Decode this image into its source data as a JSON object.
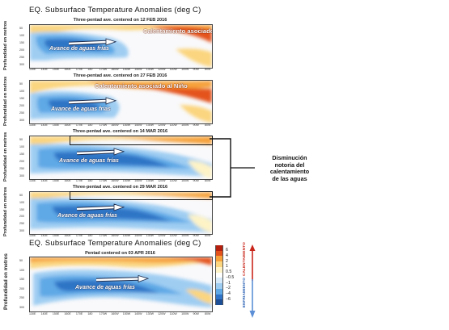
{
  "header_title": "EQ. Subsurface Temperature Anomalies (deg C)",
  "panels": [
    {
      "subtitle": "Three-pentad ave. centered on 12 FEB 2016",
      "warm_label": "Calentamiento asociado al Niño",
      "cold_label": "Avance de aguas frías",
      "ylabel": "Profundidad en metros"
    },
    {
      "subtitle": "Three-pentad ave. centered on 27 FEB 2016",
      "warm_label": "Calentamiento asociado al Niño",
      "cold_label": "Avance de aguas frías",
      "ylabel": "Profundidad en metros"
    },
    {
      "subtitle": "Three-pentad ave. centered on 14 MAR 2016",
      "warm_label": "",
      "cold_label": "Avance de aguas frías",
      "ylabel": "Profundidad en metros"
    },
    {
      "subtitle": "Three-pentad ave. centered on 29 MAR 2016",
      "warm_label": "",
      "cold_label": "Avance de aguas frías",
      "ylabel": "Profundidad en metros"
    }
  ],
  "bottom": {
    "title": "EQ. Subsurface Temperature Anomalies (deg C)",
    "subtitle": "Pentad centered on 03 APR 2016",
    "cold_label": "Avance de aguas frías",
    "ylabel": "Profundidad en metros"
  },
  "callout": {
    "lines": [
      "Disminución",
      "notoria del",
      "calentamiento",
      "de las aguas"
    ]
  },
  "depth_ticks": [
    "50",
    "100",
    "150",
    "200",
    "250",
    "300"
  ],
  "lon_ticks": [
    "130E",
    "140E",
    "150E",
    "160E",
    "170E",
    "180",
    "170W",
    "160W",
    "150W",
    "140W",
    "130W",
    "120W",
    "110W",
    "100W",
    "90W",
    "80W"
  ],
  "colorbar": {
    "labels": [
      "6",
      "4",
      "2",
      "1",
      "0.5",
      "−0.5",
      "−1",
      "−2",
      "−4",
      "−6"
    ],
    "warm_text": "CALENTAMIENTO",
    "cold_text": "ENFRIAMIENTO",
    "colors": [
      "#b51f0e",
      "#e4521c",
      "#f6a13a",
      "#fbd57f",
      "#fdf3c7",
      "#ffffff",
      "#d7eafa",
      "#9fcdf2",
      "#5fa9e6",
      "#2f74c6",
      "#1d4f97"
    ]
  },
  "colors": {
    "warm_arrow": "#c9261b",
    "cold_arrow": "#2c63b4",
    "callout_line": "#111111"
  }
}
